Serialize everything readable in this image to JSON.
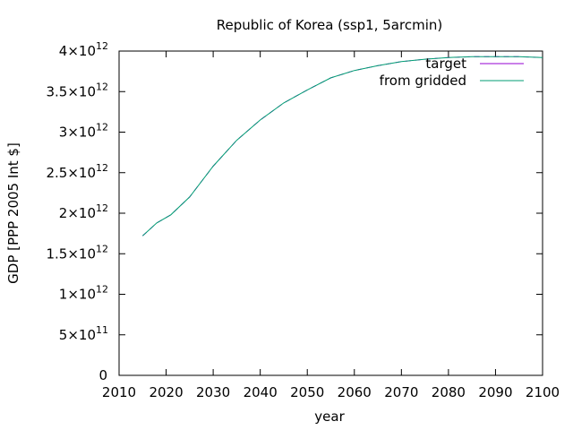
{
  "chart_data": {
    "type": "line",
    "title": "Republic of Korea (ssp1, 5arcmin)",
    "xlabel": "year",
    "ylabel": "GDP [PPP 2005 Int $]",
    "xlim": [
      2010,
      2100
    ],
    "ylim": [
      0,
      4000000000000
    ],
    "x_ticks": [
      2010,
      2020,
      2030,
      2040,
      2050,
      2060,
      2070,
      2080,
      2090,
      2100
    ],
    "y_ticks": [
      {
        "value": 0,
        "mantissa": "0",
        "exponent": ""
      },
      {
        "value": 500000000000,
        "mantissa": "5×10",
        "exponent": "11"
      },
      {
        "value": 1000000000000,
        "mantissa": "1×10",
        "exponent": "12"
      },
      {
        "value": 1500000000000,
        "mantissa": "1.5×10",
        "exponent": "12"
      },
      {
        "value": 2000000000000,
        "mantissa": "2×10",
        "exponent": "12"
      },
      {
        "value": 2500000000000,
        "mantissa": "2.5×10",
        "exponent": "12"
      },
      {
        "value": 3000000000000,
        "mantissa": "3×10",
        "exponent": "12"
      },
      {
        "value": 3500000000000,
        "mantissa": "3.5×10",
        "exponent": "12"
      },
      {
        "value": 4000000000000,
        "mantissa": "4×10",
        "exponent": "12"
      }
    ],
    "legend_position": "top-right",
    "grid": false,
    "x": [
      2015,
      2018,
      2021,
      2025,
      2030,
      2035,
      2040,
      2045,
      2050,
      2055,
      2060,
      2065,
      2070,
      2075,
      2080,
      2085,
      2090,
      2095,
      2100
    ],
    "series": [
      {
        "name": "target",
        "color": "#9400d3",
        "style": "dashed",
        "values": [
          1720000000000.0,
          1880000000000.0,
          1980000000000.0,
          2200000000000.0,
          2580000000000.0,
          2900000000000.0,
          3150000000000.0,
          3360000000000.0,
          3520000000000.0,
          3670000000000.0,
          3760000000000.0,
          3820000000000.0,
          3870000000000.0,
          3900000000000.0,
          3920000000000.0,
          3930000000000.0,
          3930000000000.0,
          3930000000000.0,
          3920000000000.0
        ]
      },
      {
        "name": "from gridded",
        "color": "#009e73",
        "style": "solid",
        "values": [
          1720000000000.0,
          1880000000000.0,
          1980000000000.0,
          2200000000000.0,
          2580000000000.0,
          2900000000000.0,
          3150000000000.0,
          3360000000000.0,
          3520000000000.0,
          3670000000000.0,
          3760000000000.0,
          3820000000000.0,
          3870000000000.0,
          3900000000000.0,
          3920000000000.0,
          3930000000000.0,
          3930000000000.0,
          3930000000000.0,
          3920000000000.0
        ]
      }
    ]
  }
}
